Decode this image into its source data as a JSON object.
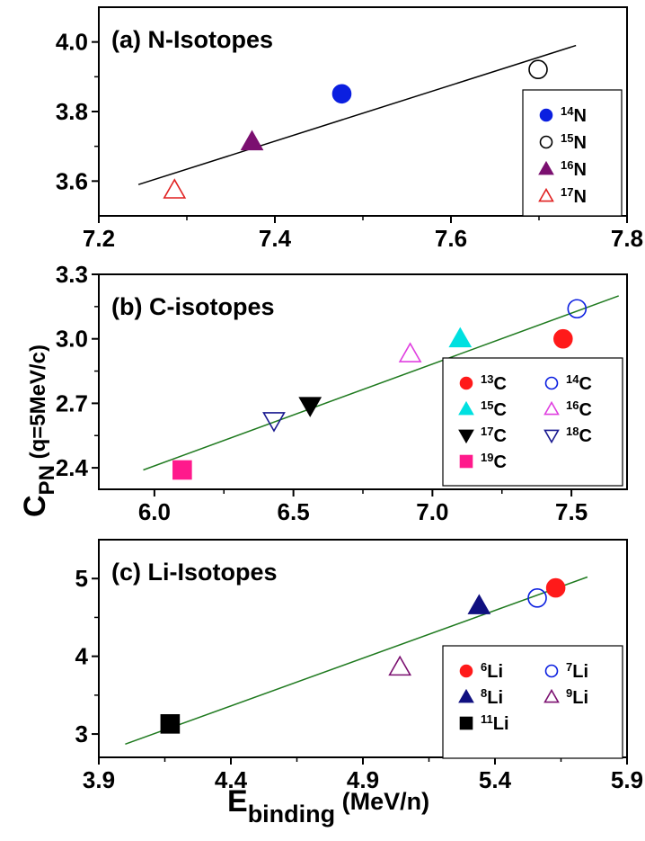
{
  "figure": {
    "ylabel_main": "C",
    "ylabel_sub": "PN",
    "ylabel_rest": " (q=5MeV/c)",
    "xlabel_main": "E",
    "xlabel_sub": "binding",
    "xlabel_rest": " (MeV/n)"
  },
  "chart_data": [
    {
      "type": "scatter",
      "title": "(a) N-Isotopes",
      "xlim": [
        7.2,
        7.8
      ],
      "ylim": [
        3.5,
        4.1
      ],
      "xticks": [
        7.2,
        7.4,
        7.6,
        7.8
      ],
      "xtick_labels": [
        "7.2",
        "7.4",
        "7.6",
        "7.8"
      ],
      "yticks": [
        3.6,
        3.8,
        4.0
      ],
      "ytick_labels": [
        "3.6",
        "3.8",
        "4.0"
      ],
      "legend_position": "bottom-right",
      "legend_columns": 1,
      "fit_line": {
        "x": [
          7.245,
          7.742
        ],
        "y": [
          3.59,
          3.99
        ],
        "color": "#000000"
      },
      "series": [
        {
          "name": "N",
          "mass": "14",
          "x": 7.476,
          "y": 3.851,
          "marker": "circle",
          "fill": true,
          "color": "#0b1fe0"
        },
        {
          "name": "N",
          "mass": "15",
          "x": 7.699,
          "y": 3.921,
          "marker": "circle",
          "fill": false,
          "color": "#000000"
        },
        {
          "name": "N",
          "mass": "16",
          "x": 7.374,
          "y": 3.713,
          "marker": "triangle-up",
          "fill": true,
          "color": "#7b1070"
        },
        {
          "name": "N",
          "mass": "17",
          "x": 7.286,
          "y": 3.574,
          "marker": "triangle-up",
          "fill": false,
          "color": "#e02020"
        }
      ]
    },
    {
      "type": "scatter",
      "title": "(b) C-isotopes",
      "xlim": [
        5.8,
        7.7
      ],
      "ylim": [
        2.3,
        3.3
      ],
      "xticks": [
        6.0,
        6.5,
        7.0,
        7.5
      ],
      "xtick_labels": [
        "6.0",
        "6.5",
        "7.0",
        "7.5"
      ],
      "yticks": [
        2.4,
        2.7,
        3.0,
        3.3
      ],
      "ytick_labels": [
        "2.4",
        "2.7",
        "3.0",
        "3.3"
      ],
      "legend_position": "bottom-right",
      "legend_columns": 2,
      "fit_line": {
        "x": [
          5.96,
          7.67
        ],
        "y": [
          2.39,
          3.2
        ],
        "color": "#1f7a1f"
      },
      "series": [
        {
          "name": "C",
          "mass": "13",
          "x": 7.47,
          "y": 3.0,
          "marker": "circle",
          "fill": true,
          "color": "#ff1a1a"
        },
        {
          "name": "C",
          "mass": "14",
          "x": 7.52,
          "y": 3.14,
          "marker": "circle",
          "fill": false,
          "color": "#0b1fe0"
        },
        {
          "name": "C",
          "mass": "15",
          "x": 7.1,
          "y": 3.0,
          "marker": "triangle-up",
          "fill": true,
          "color": "#00e0e0"
        },
        {
          "name": "C",
          "mass": "16",
          "x": 6.92,
          "y": 2.93,
          "marker": "triangle-up",
          "fill": false,
          "color": "#e040e0"
        },
        {
          "name": "C",
          "mass": "17",
          "x": 6.56,
          "y": 2.69,
          "marker": "triangle-down",
          "fill": true,
          "color": "#000000"
        },
        {
          "name": "C",
          "mass": "18",
          "x": 6.43,
          "y": 2.62,
          "marker": "triangle-down",
          "fill": false,
          "color": "#1a1a90"
        },
        {
          "name": "C",
          "mass": "19",
          "x": 6.1,
          "y": 2.39,
          "marker": "square",
          "fill": true,
          "color": "#ff1a8c"
        }
      ]
    },
    {
      "type": "scatter",
      "title": "(c) Li-Isotopes",
      "xlim": [
        3.9,
        5.9
      ],
      "ylim": [
        2.7,
        5.5
      ],
      "xticks": [
        3.9,
        4.4,
        4.9,
        5.4,
        5.9
      ],
      "xtick_labels": [
        "3.9",
        "4.4",
        "4.9",
        "5.4",
        "5.9"
      ],
      "yticks": [
        3,
        4,
        5
      ],
      "ytick_labels": [
        "3",
        "4",
        "5"
      ],
      "legend_position": "bottom-right",
      "legend_columns": 2,
      "fit_line": {
        "x": [
          4.0,
          5.75
        ],
        "y": [
          2.87,
          5.02
        ],
        "color": "#1f7a1f"
      },
      "series": [
        {
          "name": "Li",
          "mass": "6",
          "x": 5.63,
          "y": 4.88,
          "marker": "circle",
          "fill": true,
          "color": "#ff1a1a"
        },
        {
          "name": "Li",
          "mass": "7",
          "x": 5.56,
          "y": 4.75,
          "marker": "circle",
          "fill": false,
          "color": "#0b1fe0"
        },
        {
          "name": "Li",
          "mass": "8",
          "x": 5.34,
          "y": 4.65,
          "marker": "triangle-up",
          "fill": true,
          "color": "#101080"
        },
        {
          "name": "Li",
          "mass": "9",
          "x": 5.04,
          "y": 3.86,
          "marker": "triangle-up",
          "fill": false,
          "color": "#7b1070"
        },
        {
          "name": "Li",
          "mass": "11",
          "x": 4.17,
          "y": 3.13,
          "marker": "square",
          "fill": true,
          "color": "#000000"
        }
      ]
    }
  ]
}
